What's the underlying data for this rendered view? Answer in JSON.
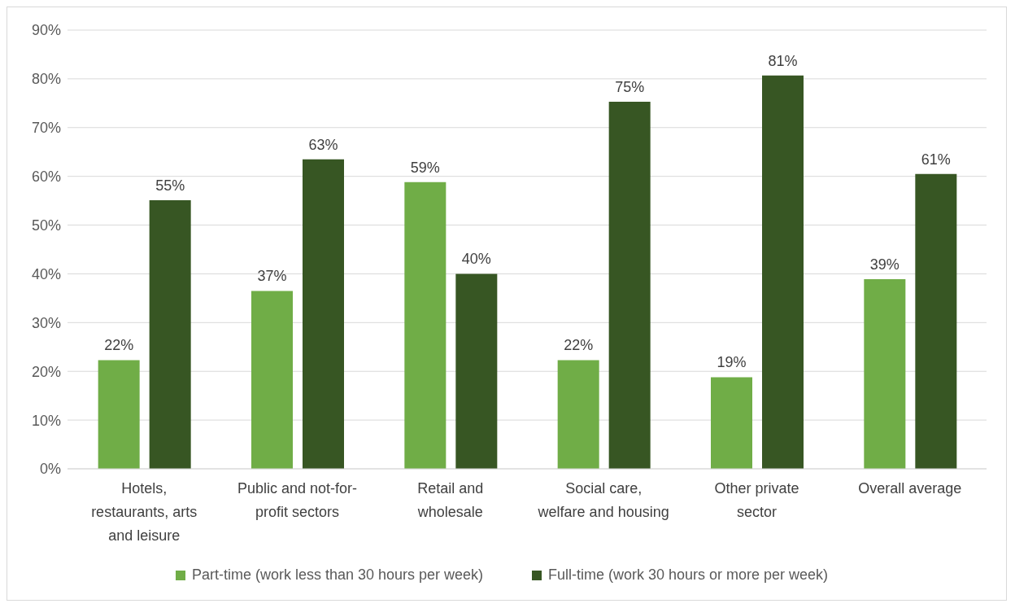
{
  "chart_data": {
    "type": "bar",
    "categories": [
      "Hotels, restaurants, arts and leisure",
      "Public and not-for-profit sectors",
      "Retail and wholesale",
      "Social care, welfare and housing",
      "Other private sector",
      "Overall average"
    ],
    "series": [
      {
        "name": "Part-time (work less than 30 hours per week)",
        "color": "#70ad47",
        "values": [
          22.3,
          36.5,
          58.8,
          22.3,
          18.8,
          38.9
        ],
        "value_labels": [
          "22%",
          "37%",
          "59%",
          "22%",
          "19%",
          "39%"
        ]
      },
      {
        "name": "Full-time (work 30 hours or more per week)",
        "color": "#375623",
        "values": [
          55.1,
          63.5,
          40,
          75.3,
          80.7,
          60.5
        ],
        "value_labels": [
          "55%",
          "63%",
          "40%",
          "75%",
          "81%",
          "61%"
        ]
      }
    ],
    "ylim": [
      0,
      90
    ],
    "yticks": [
      {
        "value": 0,
        "label": "0%"
      },
      {
        "value": 10,
        "label": "10%"
      },
      {
        "value": 20,
        "label": "20%"
      },
      {
        "value": 30,
        "label": "30%"
      },
      {
        "value": 40,
        "label": "40%"
      },
      {
        "value": 50,
        "label": "50%"
      },
      {
        "value": 60,
        "label": "60%"
      },
      {
        "value": 70,
        "label": "70%"
      },
      {
        "value": 80,
        "label": "80%"
      },
      {
        "value": 90,
        "label": "90%"
      }
    ],
    "grid": "y",
    "legend": "bottom"
  }
}
